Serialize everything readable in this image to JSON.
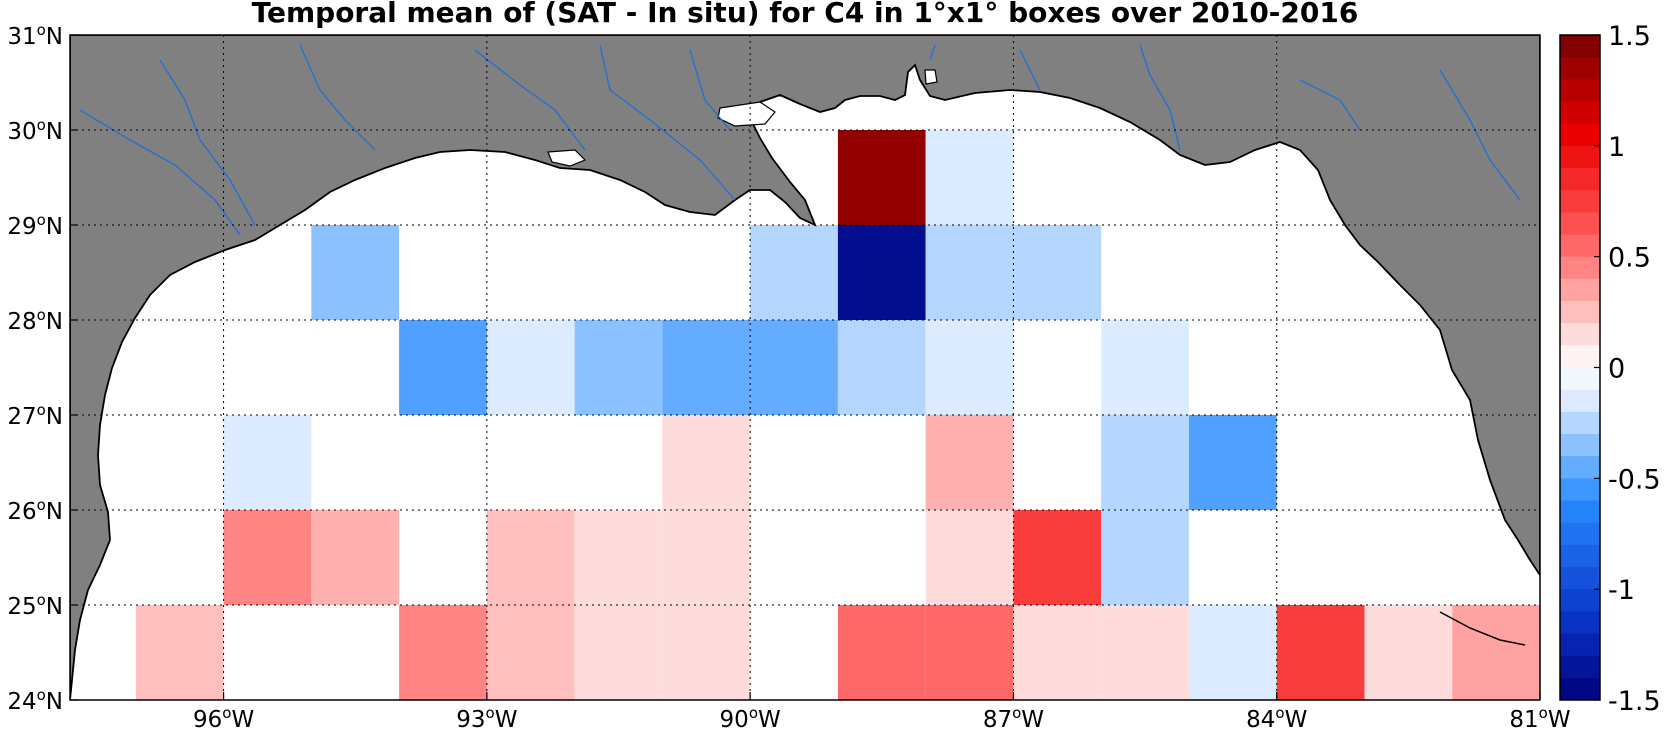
{
  "chart_data": {
    "type": "heatmap",
    "title": "Temporal mean of (SAT - In situ) for C4 in 1°x1° boxes over 2010-2016",
    "x_range": [
      -97.75,
      -81
    ],
    "y_range": [
      24,
      31
    ],
    "x_ticks": [
      {
        "value": -96,
        "deg": "96",
        "hem": "W"
      },
      {
        "value": -93,
        "deg": "93",
        "hem": "W"
      },
      {
        "value": -90,
        "deg": "90",
        "hem": "W"
      },
      {
        "value": -87,
        "deg": "87",
        "hem": "W"
      },
      {
        "value": -84,
        "deg": "84",
        "hem": "W"
      },
      {
        "value": -81,
        "deg": "81",
        "hem": "W"
      }
    ],
    "y_ticks": [
      {
        "value": 24,
        "deg": "24",
        "hem": "N"
      },
      {
        "value": 25,
        "deg": "25",
        "hem": "N"
      },
      {
        "value": 26,
        "deg": "26",
        "hem": "N"
      },
      {
        "value": 27,
        "deg": "27",
        "hem": "N"
      },
      {
        "value": 28,
        "deg": "28",
        "hem": "N"
      },
      {
        "value": 29,
        "deg": "29",
        "hem": "N"
      },
      {
        "value": 30,
        "deg": "30",
        "hem": "N"
      },
      {
        "value": 31,
        "deg": "31",
        "hem": "N"
      }
    ],
    "grid": true,
    "colorbar": {
      "range": [
        -1.5,
        1.5
      ],
      "levels": 30,
      "placement": "right",
      "ticks": [
        {
          "value": 1.5,
          "label": "1.5"
        },
        {
          "value": 1,
          "label": "1"
        },
        {
          "value": 0.5,
          "label": "0.5"
        },
        {
          "value": 0,
          "label": "0"
        },
        {
          "value": -0.5,
          "label": "-0.5"
        },
        {
          "value": -1,
          "label": "-1"
        },
        {
          "value": -1.5,
          "label": "-1.5"
        }
      ]
    },
    "cells": [
      {
        "lon": -96.5,
        "lat": 24.5,
        "value": 0.25
      },
      {
        "lon": -93.5,
        "lat": 24.5,
        "value": 0.45
      },
      {
        "lon": -92.5,
        "lat": 24.5,
        "value": 0.25
      },
      {
        "lon": -91.5,
        "lat": 24.5,
        "value": 0.15
      },
      {
        "lon": -90.5,
        "lat": 24.5,
        "value": 0.15
      },
      {
        "lon": -88.5,
        "lat": 24.5,
        "value": 0.55
      },
      {
        "lon": -87.5,
        "lat": 24.5,
        "value": 0.55
      },
      {
        "lon": -86.5,
        "lat": 24.5,
        "value": 0.15
      },
      {
        "lon": -85.5,
        "lat": 24.5,
        "value": 0.15
      },
      {
        "lon": -84.5,
        "lat": 24.5,
        "value": -0.15
      },
      {
        "lon": -83.5,
        "lat": 24.5,
        "value": 0.75
      },
      {
        "lon": -82.5,
        "lat": 24.5,
        "value": 0.15
      },
      {
        "lon": -81.5,
        "lat": 24.5,
        "value": 0.35
      },
      {
        "lon": -95.5,
        "lat": 25.5,
        "value": 0.45
      },
      {
        "lon": -94.5,
        "lat": 25.5,
        "value": 0.3
      },
      {
        "lon": -92.5,
        "lat": 25.5,
        "value": 0.25
      },
      {
        "lon": -91.5,
        "lat": 25.5,
        "value": 0.15
      },
      {
        "lon": -90.5,
        "lat": 25.5,
        "value": 0.15
      },
      {
        "lon": -87.5,
        "lat": 25.5,
        "value": 0.15
      },
      {
        "lon": -86.5,
        "lat": 25.5,
        "value": 0.75
      },
      {
        "lon": -85.5,
        "lat": 25.5,
        "value": -0.25
      },
      {
        "lon": -95.5,
        "lat": 26.5,
        "value": -0.15
      },
      {
        "lon": -90.5,
        "lat": 26.5,
        "value": 0.15
      },
      {
        "lon": -87.5,
        "lat": 26.5,
        "value": 0.3
      },
      {
        "lon": -85.5,
        "lat": 26.5,
        "value": -0.25
      },
      {
        "lon": -84.5,
        "lat": 26.5,
        "value": -0.5
      },
      {
        "lon": -93.5,
        "lat": 27.5,
        "value": -0.5
      },
      {
        "lon": -92.5,
        "lat": 27.5,
        "value": -0.15
      },
      {
        "lon": -91.5,
        "lat": 27.5,
        "value": -0.35
      },
      {
        "lon": -90.5,
        "lat": 27.5,
        "value": -0.45
      },
      {
        "lon": -89.5,
        "lat": 27.5,
        "value": -0.45
      },
      {
        "lon": -88.5,
        "lat": 27.5,
        "value": -0.25
      },
      {
        "lon": -87.5,
        "lat": 27.5,
        "value": -0.15
      },
      {
        "lon": -85.5,
        "lat": 27.5,
        "value": -0.15
      },
      {
        "lon": -94.5,
        "lat": 28.5,
        "value": -0.35
      },
      {
        "lon": -89.5,
        "lat": 28.5,
        "value": -0.25
      },
      {
        "lon": -88.5,
        "lat": 28.5,
        "value": -1.4
      },
      {
        "lon": -87.5,
        "lat": 28.5,
        "value": -0.25
      },
      {
        "lon": -86.5,
        "lat": 28.5,
        "value": -0.25
      },
      {
        "lon": -88.5,
        "lat": 29.5,
        "value": 1.4
      },
      {
        "lon": -87.5,
        "lat": 29.5,
        "value": -0.15
      }
    ]
  }
}
